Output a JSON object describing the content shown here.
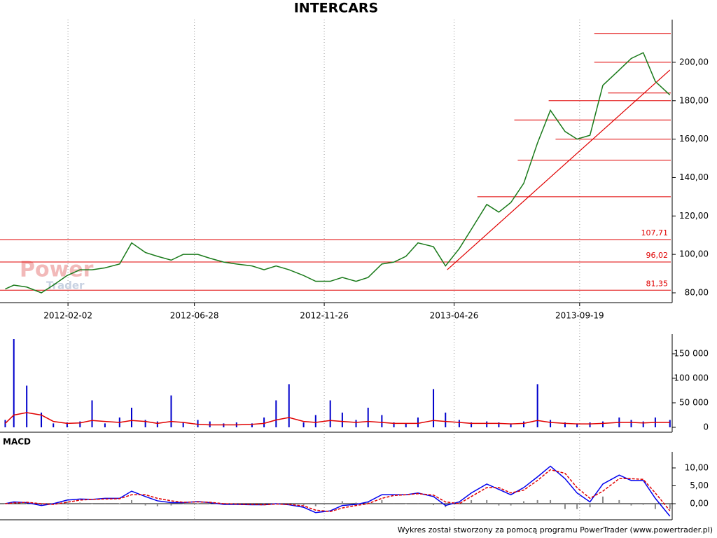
{
  "footer": "Wykres został stworzony za pomocą programu PowerTrader (www.powertrader.pl)",
  "chart_data": [
    {
      "type": "line",
      "title": "INTERCARS",
      "watermark": [
        "Power",
        "Trader"
      ],
      "x": [
        "2011-11-21",
        "2011-12-01",
        "2011-12-16",
        "2012-01-02",
        "2012-01-16",
        "2012-02-01",
        "2012-02-16",
        "2012-03-01",
        "2012-03-16",
        "2012-04-02",
        "2012-04-16",
        "2012-05-02",
        "2012-05-16",
        "2012-06-01",
        "2012-06-15",
        "2012-07-02",
        "2012-07-16",
        "2012-08-01",
        "2012-08-16",
        "2012-09-03",
        "2012-09-17",
        "2012-10-01",
        "2012-10-16",
        "2012-11-02",
        "2012-11-16",
        "2012-12-03",
        "2012-12-17",
        "2013-01-02",
        "2013-01-16",
        "2013-02-01",
        "2013-02-15",
        "2013-03-01",
        "2013-03-15",
        "2013-04-02",
        "2013-04-16",
        "2013-05-02",
        "2013-05-16",
        "2013-06-03",
        "2013-06-17",
        "2013-07-01",
        "2013-07-16",
        "2013-08-01",
        "2013-08-16",
        "2013-09-02",
        "2013-09-16",
        "2013-10-01",
        "2013-10-16",
        "2013-11-04",
        "2013-11-18",
        "2013-12-02",
        "2013-12-16",
        "2014-01-02"
      ],
      "xlim": [
        "2011-11-19",
        "2014-01-03"
      ],
      "xticks": [
        "2012-02-02",
        "2012-06-28",
        "2012-11-26",
        "2013-04-26",
        "2013-09-19"
      ],
      "grid": true,
      "ylim": [
        75,
        222
      ],
      "yticks": [
        {
          "value": 80,
          "label": "80,00"
        },
        {
          "value": 100,
          "label": "100,00"
        },
        {
          "value": 120,
          "label": "120,00"
        },
        {
          "value": 140,
          "label": "140,00"
        },
        {
          "value": 160,
          "label": "160,00"
        },
        {
          "value": 180,
          "label": "180,00"
        },
        {
          "value": 200,
          "label": "200,00"
        }
      ],
      "series": [
        {
          "type": "line",
          "color": "#1a7a1a",
          "values": [
            82,
            84,
            83,
            80,
            84,
            89,
            92,
            92,
            93,
            95,
            106,
            101,
            99,
            97,
            100,
            100,
            98,
            96,
            95,
            94,
            92,
            94,
            92,
            89,
            86,
            86,
            88,
            86,
            88,
            95,
            96,
            99,
            106,
            104,
            94,
            103,
            113,
            126,
            122,
            127,
            137,
            158,
            175,
            164,
            160,
            162,
            188,
            196,
            202,
            205,
            190,
            183
          ]
        }
      ],
      "level_color": "#e00000",
      "levels": [
        {
          "value": 107.71,
          "label": "107,71"
        },
        {
          "value": 96.02,
          "label": "96,02"
        },
        {
          "value": 81.35,
          "label": "81,35"
        },
        {
          "value": 130,
          "from": "2013-05-23"
        },
        {
          "value": 149,
          "from": "2013-07-09"
        },
        {
          "value": 160,
          "from": "2013-08-22"
        },
        {
          "value": 170,
          "from": "2013-07-05"
        },
        {
          "value": 180,
          "from": "2013-08-14"
        },
        {
          "value": 184,
          "from": "2013-10-22"
        },
        {
          "value": 200,
          "from": "2013-10-06"
        },
        {
          "value": 215,
          "from": "2013-10-06"
        }
      ],
      "trendline": {
        "x": [
          "2013-04-18",
          "2014-01-02"
        ],
        "values": [
          92,
          196
        ]
      }
    },
    {
      "type": "bar",
      "ylim": [
        0,
        190000
      ],
      "yticks": [
        0,
        {
          "value": 50000,
          "label": "50 000"
        },
        {
          "value": 100000,
          "label": "100 000"
        },
        {
          "value": 150000,
          "label": "150 000"
        }
      ],
      "series": [
        {
          "type": "bar",
          "color": "#0000cc",
          "values": [
            15000,
            180000,
            85000,
            30000,
            8000,
            10000,
            12000,
            55000,
            8000,
            20000,
            40000,
            15000,
            12000,
            65000,
            10000,
            15000,
            12000,
            8000,
            10000,
            8000,
            20000,
            55000,
            88000,
            10000,
            25000,
            55000,
            30000,
            15000,
            40000,
            25000,
            10000,
            8000,
            20000,
            78000,
            30000,
            15000,
            10000,
            12000,
            10000,
            8000,
            12000,
            88000,
            15000,
            10000,
            8000,
            10000,
            12000,
            20000,
            15000,
            12000,
            20000,
            15000
          ]
        },
        {
          "type": "line",
          "color": "#e00000",
          "values": [
            8000,
            25000,
            30000,
            25000,
            12000,
            8000,
            9000,
            14000,
            12000,
            10000,
            14000,
            12000,
            8000,
            12000,
            10000,
            6000,
            5000,
            5000,
            5000,
            6000,
            8000,
            15000,
            20000,
            12000,
            10000,
            14000,
            12000,
            10000,
            12000,
            10000,
            8000,
            8000,
            8000,
            14000,
            12000,
            10000,
            8000,
            8000,
            8000,
            7000,
            8000,
            14000,
            10000,
            8000,
            7000,
            7000,
            8000,
            10000,
            10000,
            9000,
            10000,
            10000
          ]
        }
      ]
    },
    {
      "type": "line",
      "title": "MACD",
      "zero_line": true,
      "ylim": [
        -4.5,
        14.5
      ],
      "yticks": [
        {
          "value": 0,
          "label": "0,00"
        },
        {
          "value": 5,
          "label": "5,00"
        },
        {
          "value": 10,
          "label": "10,00"
        }
      ],
      "series": [
        {
          "type": "bar",
          "color": "#888888",
          "values": [
            0,
            0.3,
            -0.1,
            -0.5,
            0.2,
            0.6,
            0.3,
            0,
            0.2,
            0.1,
            1,
            -0.5,
            -0.7,
            -0.5,
            -0.1,
            0.1,
            -0.1,
            -0.2,
            -0.1,
            -0.1,
            0,
            0.1,
            -0.1,
            -0.4,
            -0.7,
            0.2,
            0.7,
            0.3,
            0.5,
            1,
            0.2,
            0,
            0.2,
            -0.4,
            -1,
            0.5,
            1,
            1,
            -0.5,
            -0.5,
            0.7,
            1,
            1,
            -1.5,
            -1.5,
            -1,
            2,
            1,
            -0.5,
            -0.3,
            -1.5,
            -1.5
          ]
        },
        {
          "type": "line",
          "color": "#0000ee",
          "values": [
            0,
            0.5,
            0.3,
            -0.5,
            0,
            1,
            1.3,
            1.2,
            1.5,
            1.5,
            3.5,
            2,
            0.8,
            0.3,
            0.3,
            0.6,
            0.3,
            -0.2,
            -0.2,
            -0.3,
            -0.3,
            0,
            -0.3,
            -1,
            -2.5,
            -2,
            -0.5,
            -0.2,
            0.5,
            2.5,
            2.5,
            2.5,
            3,
            2,
            -0.5,
            0.5,
            3,
            5.5,
            4,
            2.5,
            4.5,
            7.5,
            10.5,
            7,
            3,
            0.5,
            5.5,
            8,
            6.5,
            6.5,
            1.5,
            -3.5
          ]
        },
        {
          "type": "line",
          "color": "#e00000",
          "dash": true,
          "values": [
            0,
            0.2,
            0.4,
            0,
            -0.2,
            0.4,
            1.0,
            1.2,
            1.3,
            1.4,
            2.5,
            2.5,
            1.5,
            0.8,
            0.4,
            0.5,
            0.4,
            0,
            -0.1,
            -0.2,
            -0.3,
            -0.1,
            -0.2,
            -0.6,
            -1.8,
            -2.2,
            -1.2,
            -0.5,
            0,
            1.5,
            2.3,
            2.5,
            2.8,
            2.4,
            0.5,
            0,
            2,
            4.5,
            4.5,
            3,
            3.8,
            6.5,
            9.5,
            8.5,
            4.5,
            1.5,
            3.5,
            7,
            7,
            6.8,
            3,
            -2
          ]
        }
      ]
    }
  ]
}
